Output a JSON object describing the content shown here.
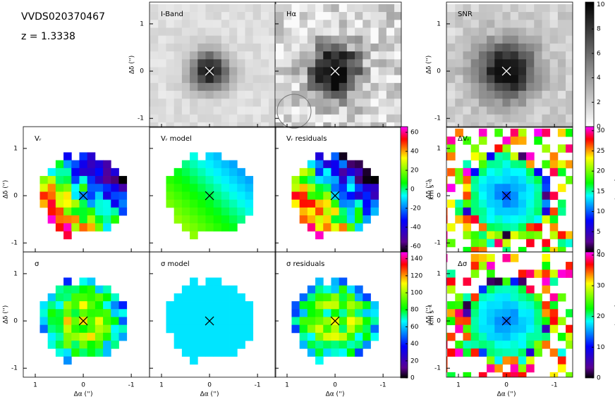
{
  "header": {
    "object_id": "VVDS020370467",
    "redshift": "z = 1.3338"
  },
  "axes": {
    "xlabel": "Δα ('')",
    "ylabel": "Δδ ('')",
    "xlim": [
      1.25,
      -1.38
    ],
    "ylim": [
      -1.19,
      1.46
    ],
    "xticks": [
      1,
      0,
      -1
    ],
    "yticks": [
      -1,
      0,
      1
    ]
  },
  "panels": [
    {
      "label": "I-Band",
      "colormap": "gray"
    },
    {
      "label": "Hα",
      "colormap": "gray"
    },
    {
      "label": "SNR",
      "colormap": "gray"
    },
    {
      "label": "Vᵣ",
      "colormap": "rainbow"
    },
    {
      "label": "Vᵣ model",
      "colormap": "rainbow"
    },
    {
      "label": "Vᵣ residuals",
      "colormap": "rainbow"
    },
    {
      "label": "ΔVᵣ",
      "colormap": "rainbow"
    },
    {
      "label": "σ",
      "colormap": "rainbow"
    },
    {
      "label": "σ model",
      "colormap": "rainbow"
    },
    {
      "label": "σ residuals",
      "colormap": "rainbow"
    },
    {
      "label": "Δσ",
      "colormap": "rainbow"
    }
  ],
  "colorbars": [
    {
      "colormap": "gray",
      "lim": [
        0,
        10.2
      ],
      "ticks": [
        0,
        2,
        4,
        6,
        8,
        10
      ]
    },
    {
      "colormap": "rainbow",
      "lim": [
        -66,
        66
      ],
      "ticks": [
        -60,
        -40,
        -20,
        0,
        20,
        40,
        60
      ],
      "label": "km s⁻¹"
    },
    {
      "colormap": "rainbow",
      "lim": [
        0,
        148
      ],
      "ticks": [
        0,
        20,
        40,
        60,
        80,
        100,
        120,
        140
      ],
      "label": "km s⁻¹"
    },
    {
      "colormap": "rainbow",
      "lim": [
        0,
        31
      ],
      "ticks": [
        0,
        5,
        10,
        15,
        20,
        25,
        30
      ],
      "label": "km s⁻¹"
    },
    {
      "colormap": "rainbow",
      "lim": [
        0,
        41
      ],
      "ticks": [
        0,
        10,
        20,
        30,
        40
      ],
      "label": "km s⁻¹"
    }
  ]
}
